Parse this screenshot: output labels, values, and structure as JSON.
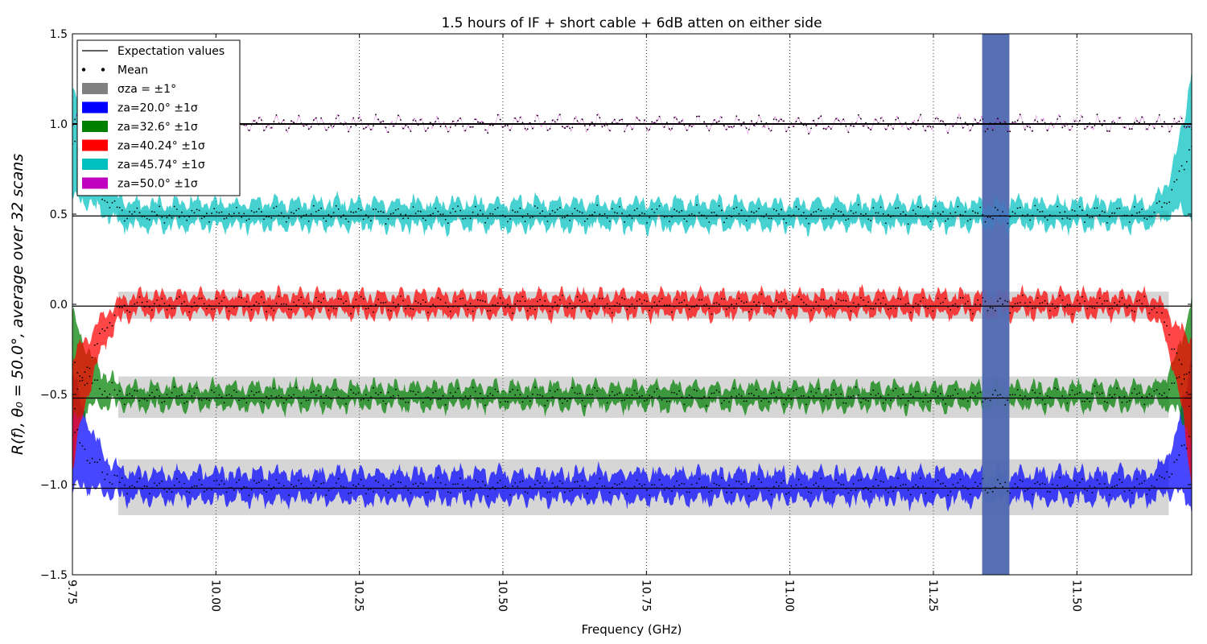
{
  "chart_data": {
    "type": "line",
    "title": "1.5 hours of IF + short cable + 6dB atten on either side",
    "xlabel": "Frequency (GHz)",
    "ylabel": "R(f), θ₀ = 50.0°, average over 32 scans",
    "xlim": [
      9.75,
      11.7
    ],
    "ylim": [
      -1.5,
      1.5
    ],
    "x_ticks": [
      9.75,
      10.0,
      10.25,
      10.5,
      10.75,
      11.0,
      11.25,
      11.5
    ],
    "x_tick_labels": [
      "9.75",
      "10.00",
      "10.25",
      "10.50",
      "10.75",
      "11.00",
      "11.25",
      "11.50"
    ],
    "y_ticks": [
      -1.5,
      -1.0,
      -0.5,
      0.0,
      0.5,
      1.0,
      1.5
    ],
    "y_tick_labels": [
      "−1.5",
      "−1.0",
      "−0.5",
      "0.0",
      "0.5",
      "1.0",
      "1.5"
    ],
    "grid": "vertical dotted",
    "legend_position": "top-left",
    "legend": [
      {
        "label": "Expectation values",
        "kind": "line",
        "color": "#000000"
      },
      {
        "label": "Mean",
        "kind": "dots",
        "color": "#000000"
      },
      {
        "label": "σza = ±1°",
        "kind": "patch",
        "color": "#808080"
      },
      {
        "label": "za=20.0° ±1σ",
        "kind": "patch",
        "color": "#0000ff"
      },
      {
        "label": "za=32.6° ±1σ",
        "kind": "patch",
        "color": "#008000"
      },
      {
        "label": "za=40.24° ±1σ",
        "kind": "patch",
        "color": "#ff0000"
      },
      {
        "label": "za=45.74° ±1σ",
        "kind": "patch",
        "color": "#00bfbf"
      },
      {
        "label": "za=50.0° ±1σ",
        "kind": "patch",
        "color": "#bf00bf"
      }
    ],
    "series": [
      {
        "za": 20.0,
        "color": "#0000ff",
        "expectation": -1.02,
        "mean_level": -1.01,
        "band_halfwidth": 0.07,
        "sigma_za_band": [
          -1.17,
          -0.86
        ],
        "edge_rise_to": -0.7
      },
      {
        "za": 32.6,
        "color": "#008000",
        "expectation": -0.52,
        "mean_level": -0.51,
        "band_halfwidth": 0.05,
        "sigma_za_band": [
          -0.63,
          -0.4
        ],
        "edge_rise_to": -0.35
      },
      {
        "za": 40.24,
        "color": "#ff0000",
        "expectation": -0.01,
        "mean_level": 0.0,
        "band_halfwidth": 0.05,
        "sigma_za_band": [
          -0.08,
          0.07
        ],
        "edge_rise_to": -0.6
      },
      {
        "za": 45.74,
        "color": "#00bfbf",
        "expectation": 0.49,
        "mean_level": 0.5,
        "band_halfwidth": 0.06,
        "sigma_za_band": [
          0.47,
          0.52
        ],
        "edge_rise_to": 0.9
      },
      {
        "za": 50.0,
        "color": "#bf00bf",
        "expectation": 1.0,
        "mean_level": 1.0,
        "band_halfwidth": 0.003,
        "sigma_za_band": [
          0.999,
          1.001
        ],
        "edge_rise_to": 1.0
      }
    ],
    "bad_band_ghz": [
      11.33,
      11.38
    ],
    "edge_rolloff_ghz": {
      "left": [
        9.75,
        9.86
      ],
      "right": [
        11.62,
        11.7
      ]
    }
  }
}
